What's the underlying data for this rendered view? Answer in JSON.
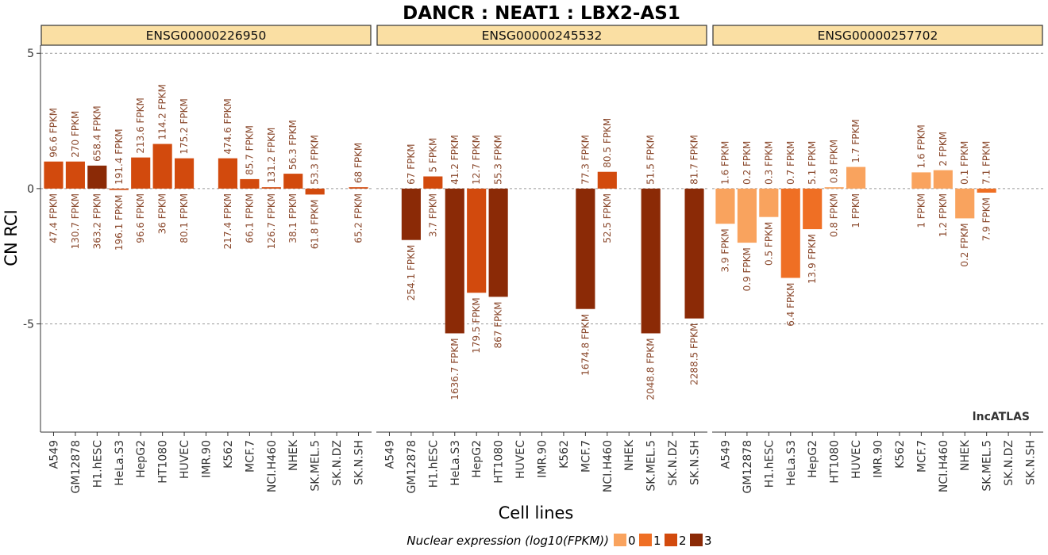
{
  "title": "DANCR : NEAT1 : LBX2-AS1",
  "ylabel": "CN RCI",
  "xlabel": "Cell lines",
  "watermark": "lncATLAS",
  "legend": {
    "title": "Nuclear expression (log10(FPKM))",
    "items": [
      {
        "label": "0",
        "color": "#F9A35E"
      },
      {
        "label": "1",
        "color": "#EF6F24"
      },
      {
        "label": "2",
        "color": "#D24A0D"
      },
      {
        "label": "3",
        "color": "#8B2A06"
      }
    ]
  },
  "colors": {
    "strip_fill": "#FADFA3",
    "grid": "#999999",
    "text": "#333333",
    "label": "#8B4A2E"
  },
  "chart_data": {
    "type": "bar",
    "ylim": [
      -9,
      5.3
    ],
    "yticks": [
      5,
      0,
      -5
    ],
    "ytick_labels": [
      "5",
      "0",
      "-5"
    ],
    "categories": [
      "A549",
      "GM12878",
      "H1.hESC",
      "HeLa.S3",
      "HepG2",
      "HT1080",
      "HUVEC",
      "IMR.90",
      "K562",
      "MCF.7",
      "NCI.H460",
      "NHEK",
      "SK.MEL.5",
      "SK.N.DZ",
      "SK.N.SH"
    ],
    "panels": [
      {
        "name": "ENSG00000226950",
        "values": [
          1.0,
          1.0,
          0.85,
          -0.05,
          1.15,
          1.65,
          1.12,
          null,
          1.12,
          0.35,
          0.05,
          0.55,
          -0.22,
          null,
          0.05
        ],
        "level": [
          2,
          2,
          3,
          2,
          2,
          2,
          2,
          null,
          2,
          2,
          2,
          2,
          2,
          null,
          2
        ],
        "upper": [
          "96.6 FPKM",
          "270 FPKM",
          "658.4 FPKM",
          "191.4 FPKM",
          "213.6 FPKM",
          "114.2 FPKM",
          "175.2 FPKM",
          null,
          "474.6 FPKM",
          "85.7 FPKM",
          "131.2 FPKM",
          "56.3 FPKM",
          "53.3 FPKM",
          null,
          "68 FPKM"
        ],
        "lower": [
          "47.4 FPKM",
          "130.7 FPKM",
          "363.2 FPKM",
          "196.1 FPKM",
          "96.6 FPKM",
          "36 FPKM",
          "80.1 FPKM",
          null,
          "217.4 FPKM",
          "66.1 FPKM",
          "126.7 FPKM",
          "38.1 FPKM",
          "61.8 FPKM",
          null,
          "65.2 FPKM"
        ]
      },
      {
        "name": "ENSG00000245532",
        "values": [
          null,
          -1.9,
          0.45,
          -5.35,
          -3.85,
          -4.0,
          null,
          null,
          null,
          -4.45,
          0.62,
          null,
          -5.35,
          null,
          -4.8
        ],
        "level": [
          null,
          3,
          2,
          3,
          2,
          3,
          null,
          null,
          null,
          3,
          2,
          null,
          3,
          null,
          3
        ],
        "upper": [
          null,
          "67 FPKM",
          "5 FPKM",
          "41.2 FPKM",
          "12.7 FPKM",
          "55.3 FPKM",
          null,
          null,
          null,
          "77.3 FPKM",
          "80.5 FPKM",
          null,
          "51.5 FPKM",
          null,
          "81.7 FPKM"
        ],
        "lower": [
          null,
          "254.1 FPKM",
          "3.7 FPKM",
          "1636.7 FPKM",
          "179.5 FPKM",
          "867 FPKM",
          null,
          null,
          null,
          "1674.8 FPKM",
          "52.5 FPKM",
          null,
          "2048.8 FPKM",
          null,
          "2288.5 FPKM"
        ]
      },
      {
        "name": "ENSG00000257702",
        "values": [
          -1.3,
          -2.0,
          -1.05,
          -3.3,
          -1.5,
          0.05,
          0.8,
          null,
          null,
          0.6,
          0.68,
          -1.1,
          -0.15,
          null,
          null
        ],
        "level": [
          0,
          0,
          0,
          1,
          1,
          0,
          0,
          null,
          null,
          0,
          0,
          0,
          1,
          null,
          null
        ],
        "upper": [
          "1.6 FPKM",
          "0.2 FPKM",
          "0.3 FPKM",
          "0.7 FPKM",
          "5.1 FPKM",
          "0.8 FPKM",
          "1.7 FPKM",
          null,
          null,
          "1.6 FPKM",
          "2 FPKM",
          "0.1 FPKM",
          "7.1 FPKM",
          null,
          null
        ],
        "lower": [
          "3.9 FPKM",
          "0.9 FPKM",
          "0.5 FPKM",
          "6.4 FPKM",
          "13.9 FPKM",
          "0.8 FPKM",
          "1 FPKM",
          null,
          null,
          "1 FPKM",
          "1.2 FPKM",
          "0.2 FPKM",
          "7.9 FPKM",
          null,
          null
        ]
      }
    ]
  }
}
